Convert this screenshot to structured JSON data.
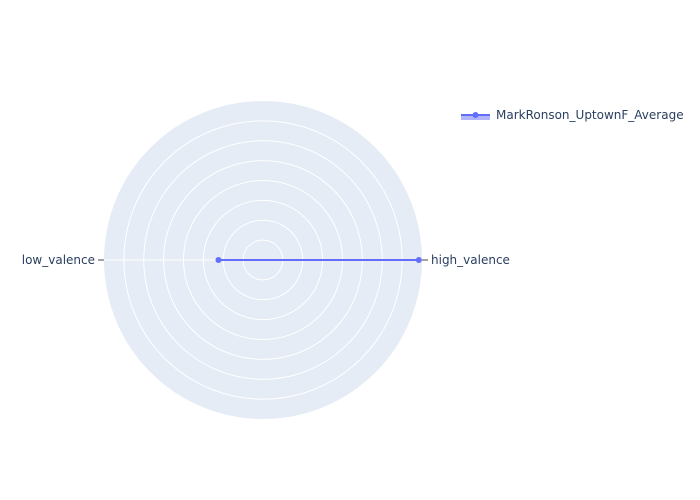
{
  "chart_data": {
    "type": "radar",
    "categories": [
      "high_valence",
      "low_valence"
    ],
    "series": [
      {
        "name": "MarkRonson_UptownF_Average",
        "values": [
          0.98,
          0.28
        ],
        "color": "#636efa",
        "fill_color": "#636efa"
      }
    ],
    "radial_range": [
      0,
      1
    ],
    "grid": true,
    "background_color": "#e5ecf6",
    "grid_color": "#ffffff",
    "legend": "top-right"
  }
}
